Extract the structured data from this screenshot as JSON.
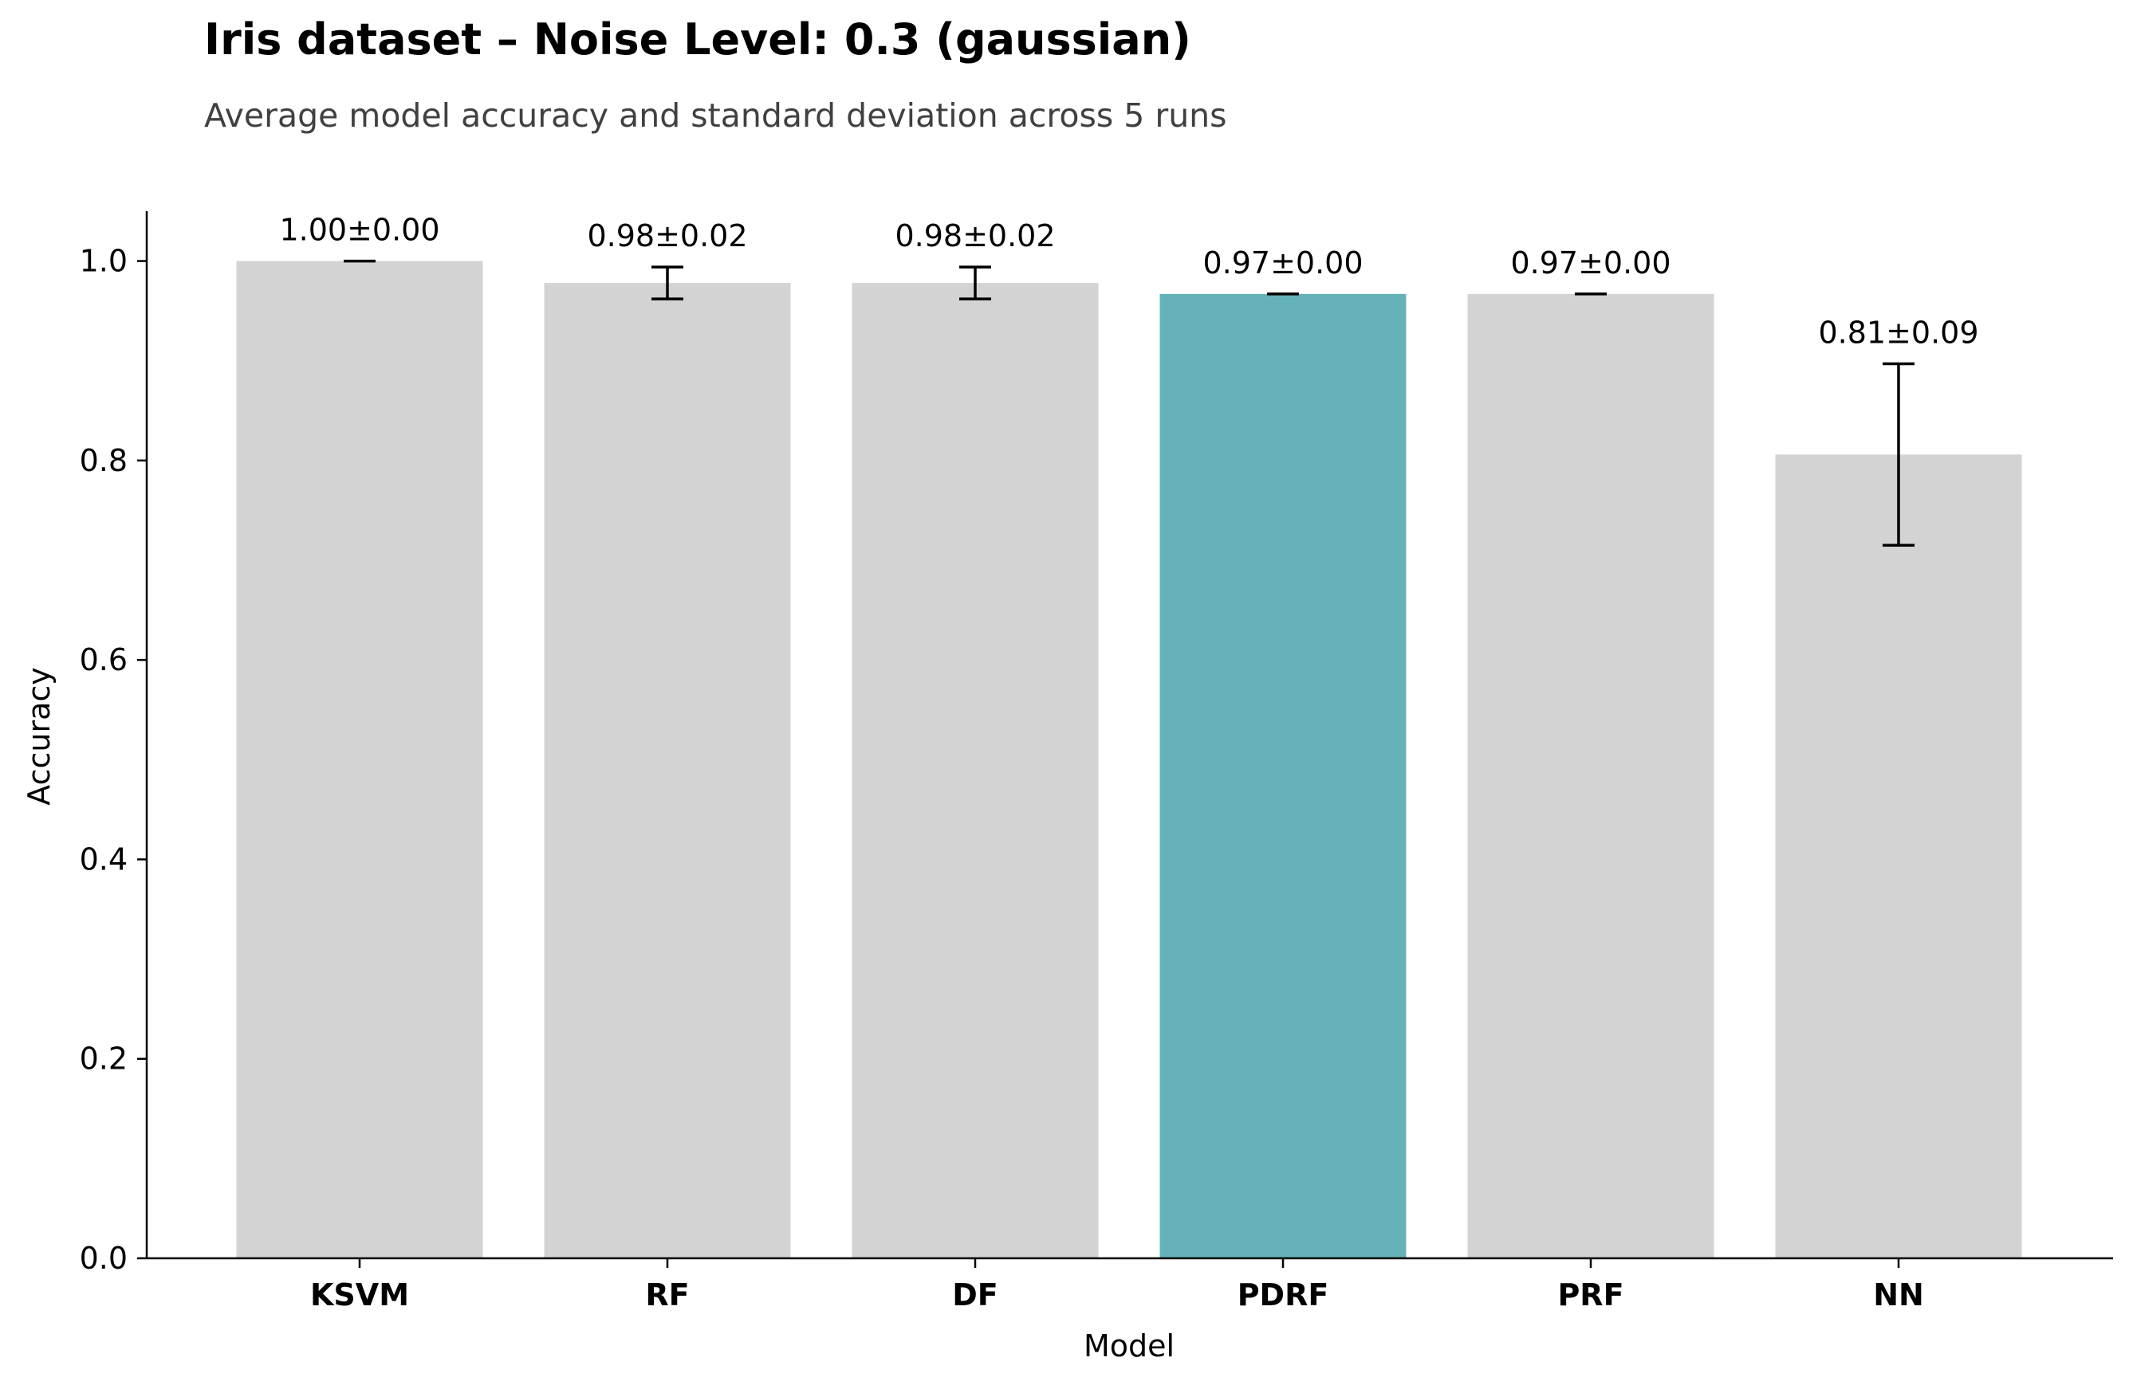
{
  "chart_data": {
    "type": "bar",
    "title": "Iris dataset – Noise Level: 0.3 (gaussian)",
    "subtitle": "Average model accuracy and standard deviation across 5 runs",
    "xlabel": "Model",
    "ylabel": "Accuracy",
    "ylim": [
      0,
      1.05
    ],
    "yticks": [
      0.0,
      0.2,
      0.4,
      0.6,
      0.8,
      1.0
    ],
    "ytick_labels": [
      "0.0",
      "0.2",
      "0.4",
      "0.6",
      "0.8",
      "1.0"
    ],
    "grid": false,
    "categories": [
      "KSVM",
      "RF",
      "DF",
      "PDRF",
      "PRF",
      "NN"
    ],
    "values": [
      1.0,
      0.978,
      0.978,
      0.967,
      0.967,
      0.806
    ],
    "errors": [
      0.0,
      0.016,
      0.016,
      0.0,
      0.0,
      0.091
    ],
    "data_labels": [
      "1.00±0.00",
      "0.98±0.02",
      "0.98±0.02",
      "0.97±0.00",
      "0.97±0.00",
      "0.81±0.09"
    ],
    "highlight_category": "PDRF",
    "colors": {
      "bar": "#d3d3d3",
      "highlight": "#64b2b8",
      "errorbar": "#000000",
      "axis": "#000000"
    }
  }
}
